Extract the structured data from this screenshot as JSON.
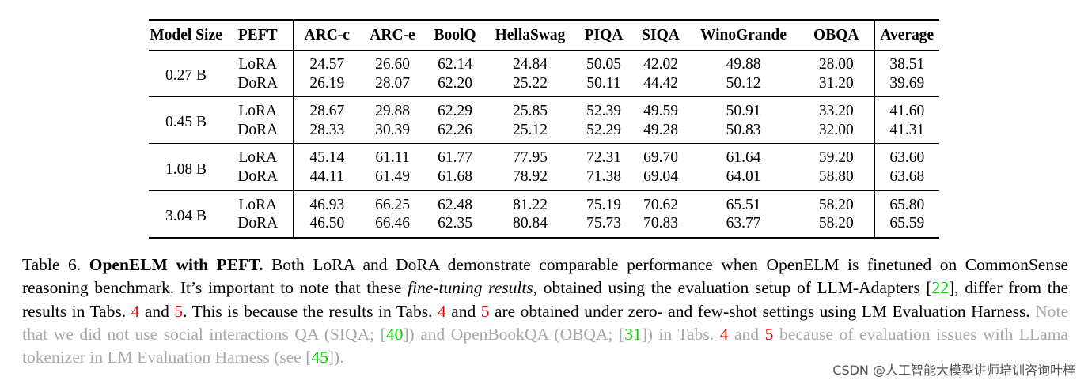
{
  "table": {
    "headers": [
      "Model Size",
      "PEFT",
      "ARC-c",
      "ARC-e",
      "BoolQ",
      "HellaSwag",
      "PIQA",
      "SIQA",
      "WinoGrande",
      "OBQA",
      "Average"
    ],
    "groups": [
      {
        "size": "0.27 B",
        "rows": [
          {
            "peft": "LoRA",
            "values": [
              "24.57",
              "26.60",
              "62.14",
              "24.84",
              "50.05",
              "42.02",
              "49.88",
              "28.00",
              "38.51"
            ]
          },
          {
            "peft": "DoRA",
            "values": [
              "26.19",
              "28.07",
              "62.20",
              "25.22",
              "50.11",
              "44.42",
              "50.12",
              "31.20",
              "39.69"
            ]
          }
        ]
      },
      {
        "size": "0.45 B",
        "rows": [
          {
            "peft": "LoRA",
            "values": [
              "28.67",
              "29.88",
              "62.29",
              "25.85",
              "52.39",
              "49.59",
              "50.91",
              "33.20",
              "41.60"
            ]
          },
          {
            "peft": "DoRA",
            "values": [
              "28.33",
              "30.39",
              "62.26",
              "25.12",
              "52.29",
              "49.28",
              "50.83",
              "32.00",
              "41.31"
            ]
          }
        ]
      },
      {
        "size": "1.08 B",
        "rows": [
          {
            "peft": "LoRA",
            "values": [
              "45.14",
              "61.11",
              "61.77",
              "77.95",
              "72.31",
              "69.70",
              "61.64",
              "59.20",
              "63.60"
            ]
          },
          {
            "peft": "DoRA",
            "values": [
              "44.11",
              "61.49",
              "61.68",
              "78.92",
              "71.38",
              "69.04",
              "64.01",
              "58.80",
              "63.68"
            ]
          }
        ]
      },
      {
        "size": "3.04 B",
        "rows": [
          {
            "peft": "LoRA",
            "values": [
              "46.93",
              "66.25",
              "62.48",
              "81.22",
              "75.19",
              "70.62",
              "65.51",
              "58.20",
              "65.80"
            ]
          },
          {
            "peft": "DoRA",
            "values": [
              "46.50",
              "66.46",
              "62.35",
              "80.84",
              "75.73",
              "70.83",
              "63.77",
              "58.20",
              "65.59"
            ]
          }
        ]
      }
    ]
  },
  "caption": {
    "label": "Table 6.",
    "bold_title": "OpenELM with PEFT.",
    "p1": " Both LoRA and DoRA demonstrate comparable performance when OpenELM is finetuned on CommonSense reasoning benchmark. It’s important to note that these ",
    "italic": "fine-tuning results",
    "p2": ", obtained using the evaluation setup of LLM-Adapters [",
    "ref_22": "22",
    "p3": "], differ from the results in Tabs. ",
    "ref_4a": "4",
    "and1": " and ",
    "ref_5a": "5",
    "p4": ". This is because the results in Tabs. ",
    "ref_4b": "4",
    "and2": " and ",
    "ref_5b": "5",
    "p5": " are obtained under zero- and few-shot settings using LM Evaluation Harness. ",
    "gray1": "Note that we did not use social interactions QA (SIQA; [",
    "ref_40": "40",
    "gray2": "]) and OpenBookQA (OBQA; [",
    "ref_31": "31",
    "gray3": "]) in Tabs. ",
    "ref_4c": "4",
    "gray_and": " and ",
    "ref_5c": "5",
    "gray4": " because of evaluation issues with LLama tokenizer in LM Evaluation Harness (see [",
    "ref_45": "45",
    "gray5": "])."
  },
  "watermark": "CSDN @人工智能大模型讲师培训咨询叶梓",
  "colors": {
    "ref_green": "#00cc00",
    "ref_red": "#e00000",
    "gray_text": "#a8a8a8"
  }
}
